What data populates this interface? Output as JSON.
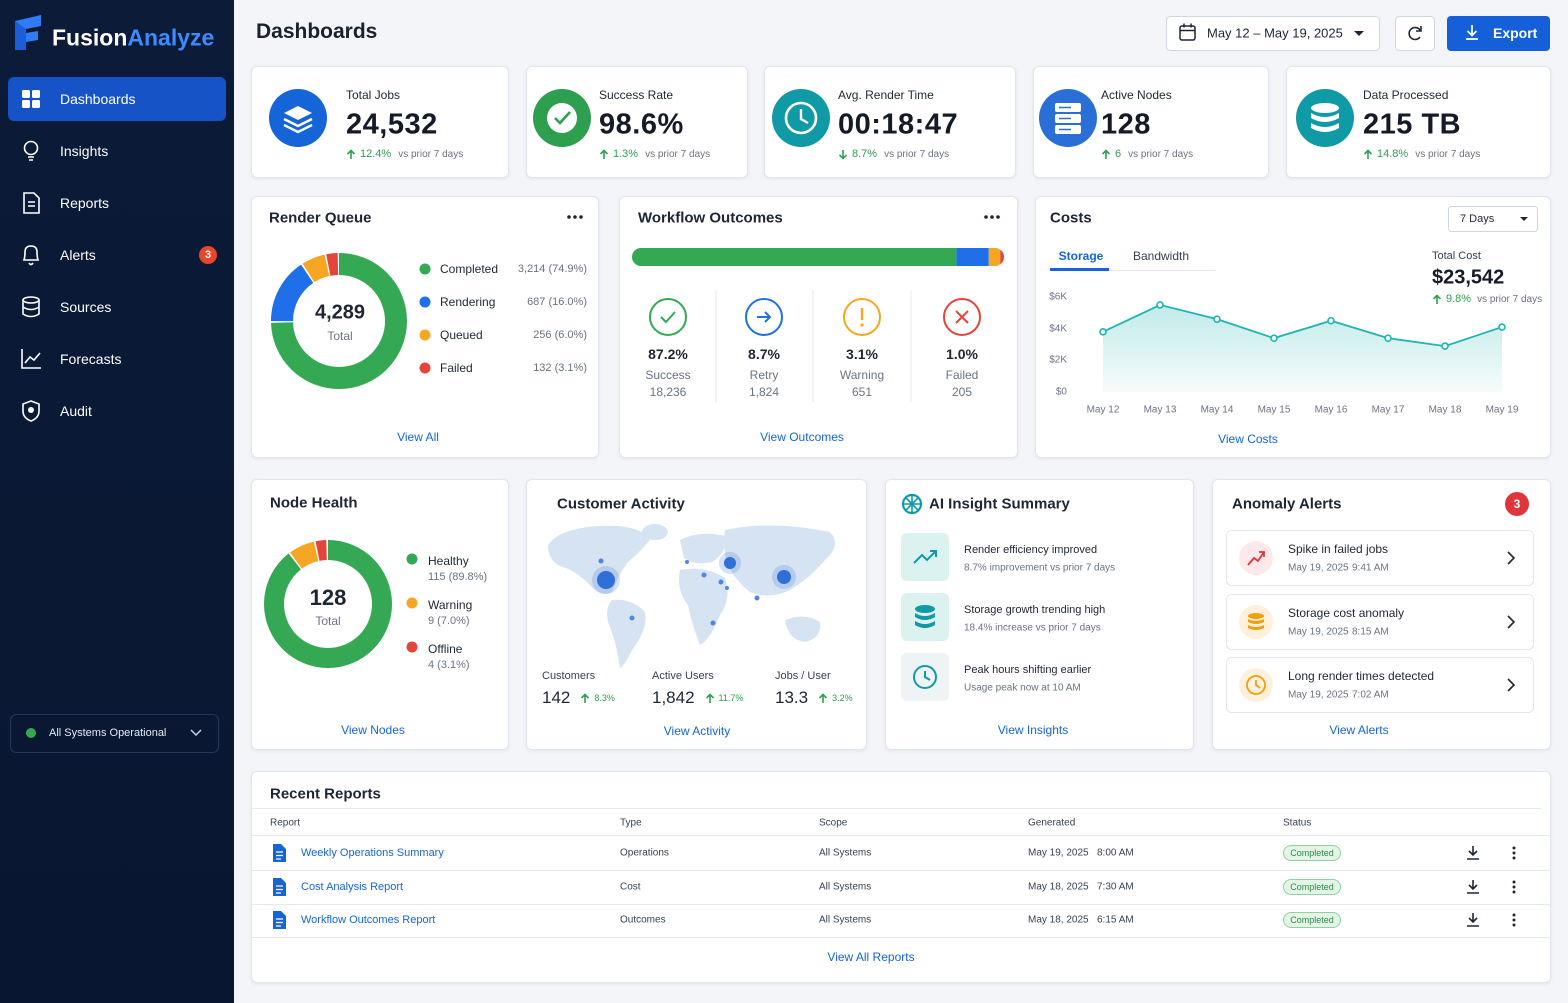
{
  "sidebar": {
    "brand_first": "Fusion",
    "brand_second": "Analyze",
    "nav": [
      {
        "label": "Dashboards"
      },
      {
        "label": "Insights"
      },
      {
        "label": "Reports"
      },
      {
        "label": "Alerts",
        "badge": 3
      },
      {
        "label": "Sources"
      },
      {
        "label": "Forecasts"
      },
      {
        "label": "Audit"
      }
    ],
    "status": "All Systems Operational"
  },
  "header": {
    "title": "Dashboards",
    "date_range": "May 12 – May 19, 2025",
    "export": "Export"
  },
  "kpis": [
    {
      "label": "Total Jobs",
      "value": "24,532",
      "change": "12.4%",
      "trend": "up",
      "comparison": "vs prior 7 days"
    },
    {
      "label": "Success Rate",
      "value": "98.6%",
      "change": "1.3%",
      "trend": "up",
      "comparison": "vs prior 7 days"
    },
    {
      "label": "Avg. Render Time",
      "value": "00:18:47",
      "change": "8.7%",
      "trend": "down",
      "comparison": "vs prior 7 days"
    },
    {
      "label": "Active Nodes",
      "value": "128",
      "change": "6",
      "trend": "up",
      "comparison": "vs prior 7 days"
    },
    {
      "label": "Data Processed",
      "value": "215 TB",
      "change": "14.8%",
      "trend": "up",
      "comparison": "vs prior 7 days"
    }
  ],
  "render_queue": {
    "title": "Render Queue",
    "total": "4,289",
    "total_label": "Total",
    "items": [
      {
        "label": "Completed",
        "value": 74.9,
        "value_label": "3,214 (74.9%)",
        "color": "#34a853"
      },
      {
        "label": "Rendering",
        "value": 16,
        "value_label": "687 (16.0%)",
        "color": "#1e6fe8"
      },
      {
        "label": "Queued",
        "value": 6,
        "value_label": "256 (6.0%)",
        "color": "#f5a623"
      },
      {
        "label": "Failed",
        "value": 3.1,
        "value_label": "132 (3.1%)",
        "color": "#e5443b"
      }
    ],
    "link": "View All"
  },
  "workflow": {
    "title": "Workflow Outcomes",
    "items": [
      {
        "label": "Success",
        "value": 87.2,
        "value_label": "87.2%",
        "count": "18,236",
        "color": "#34a853"
      },
      {
        "label": "Retry",
        "value": 8.7,
        "value_label": "8.7%",
        "count": "1,824",
        "color": "#1e6fe8"
      },
      {
        "label": "Warning",
        "value": 3.1,
        "value_label": "3.1%",
        "count": "651",
        "color": "#f5a623"
      },
      {
        "label": "Failed",
        "value": 1,
        "value_label": "1.0%",
        "count": "205",
        "color": "#e5443b"
      }
    ],
    "link": "View Outcomes"
  },
  "costs": {
    "title": "Costs",
    "period": "7 Days",
    "tabs": [
      "Storage",
      "Bandwidth"
    ],
    "total_label": "Total Cost",
    "total": "$23,542",
    "change": "9.8%",
    "comparison": "vs prior 7 days",
    "chart": {
      "type": "area",
      "categories": [
        "May 12",
        "May 13",
        "May 14",
        "May 15",
        "May 16",
        "May 17",
        "May 18",
        "May 19"
      ],
      "values": [
        3800,
        5500,
        4600,
        3400,
        4500,
        3400,
        2900,
        4100
      ],
      "color": "#1fb5b0",
      "ylim": [
        0,
        6000
      ],
      "yticks": [
        {
          "value": 0,
          "label": "$0"
        },
        {
          "value": 2000,
          "label": "$2K"
        },
        {
          "value": 4000,
          "label": "$4K"
        },
        {
          "value": 6000,
          "label": "$6K"
        }
      ]
    },
    "link": "View Costs"
  },
  "node_health": {
    "title": "Node Health",
    "total": "128",
    "total_label": "Total",
    "items": [
      {
        "label": "Healthy",
        "value": 89.8,
        "value_label": "115 (89.8%)",
        "color": "#34a853"
      },
      {
        "label": "Warning",
        "value": 7,
        "value_label": "9 (7.0%)",
        "color": "#f5a623"
      },
      {
        "label": "Offline",
        "value": 3.1,
        "value_label": "4 (3.1%)",
        "color": "#e5443b"
      }
    ],
    "link": "View Nodes"
  },
  "customer_activity": {
    "title": "Customer Activity",
    "stats": [
      {
        "label": "Customers",
        "value": "142",
        "change": "8.3%"
      },
      {
        "label": "Active Users",
        "value": "1,842",
        "change": "11.7%"
      },
      {
        "label": "Jobs / User",
        "value": "13.3",
        "change": "3.2%"
      }
    ],
    "link": "View Activity"
  },
  "ai_insights": {
    "title": "AI Insight Summary",
    "items": [
      {
        "title": "Render efficiency improved",
        "detail": "8.7% improvement vs prior 7 days"
      },
      {
        "title": "Storage growth trending high",
        "detail": "18.4% increase vs prior 7 days"
      },
      {
        "title": "Peak hours shifting earlier",
        "detail": "Usage peak now at 10 AM"
      }
    ],
    "link": "View Insights"
  },
  "anomaly_alerts": {
    "title": "Anomaly Alerts",
    "count": 3,
    "items": [
      {
        "title": "Spike in failed jobs",
        "date": "May 19, 2025",
        "time": "9:41 AM"
      },
      {
        "title": "Storage cost anomaly",
        "date": "May 19, 2025",
        "time": "8:15 AM"
      },
      {
        "title": "Long render times detected",
        "date": "May 19, 2025",
        "time": "7:02 AM"
      }
    ],
    "link": "View Alerts"
  },
  "recent_reports": {
    "title": "Recent Reports",
    "columns": [
      "Report",
      "Type",
      "Scope",
      "Generated",
      "Status"
    ],
    "rows": [
      {
        "report": "Weekly Operations Summary",
        "type": "Operations",
        "scope": "All Systems",
        "date": "May 19, 2025",
        "time": "8:00 AM",
        "status": "Completed"
      },
      {
        "report": "Cost Analysis Report",
        "type": "Cost",
        "scope": "All Systems",
        "date": "May 18, 2025",
        "time": "7:30 AM",
        "status": "Completed"
      },
      {
        "report": "Workflow Outcomes Report",
        "type": "Outcomes",
        "scope": "All Systems",
        "date": "May 18, 2025",
        "time": "6:15 AM",
        "status": "Completed"
      }
    ],
    "link": "View All Reports"
  }
}
